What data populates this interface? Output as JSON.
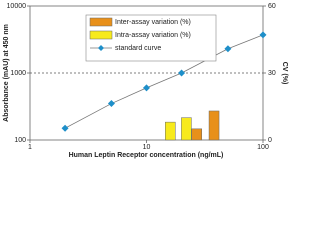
{
  "chart_data": {
    "type": "line",
    "x_label": "Human Leptin Receptor concentration (ng/mL)",
    "y_label": "Absorbance (mAU) at 450 nm",
    "y2_label": "CV (%)",
    "xscale": "log",
    "yscale": "log",
    "xlim": [
      1,
      100
    ],
    "xticks": [
      1,
      10,
      100
    ],
    "ylim": [
      100,
      10000
    ],
    "yticks": [
      100,
      1000,
      10000
    ],
    "y2lim": [
      0,
      60
    ],
    "y2ticks": [
      0,
      30,
      60
    ],
    "y2_dashed_line": 30,
    "series": [
      {
        "name": "Inter-assay variation (%)",
        "type": "bar",
        "axis": "y2",
        "color": "#e8901a",
        "x": [
          27,
          38
        ],
        "values": [
          5,
          13
        ]
      },
      {
        "name": "Intra-assay variation (%)",
        "type": "bar",
        "axis": "y2",
        "color": "#f7ea1c",
        "x": [
          16,
          22
        ],
        "values": [
          8,
          10
        ]
      },
      {
        "name": "standard curve",
        "type": "line",
        "color": "#1e8fc9",
        "line_color": "#777777",
        "x": [
          2,
          5,
          10,
          20,
          50,
          100
        ],
        "values": [
          150,
          350,
          600,
          1000,
          2300,
          3700
        ]
      }
    ]
  }
}
